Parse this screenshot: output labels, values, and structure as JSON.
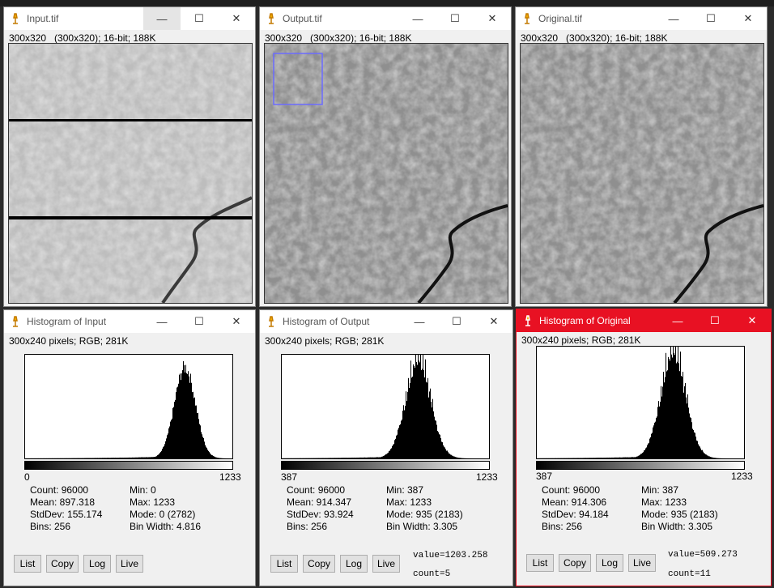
{
  "windows": {
    "input": {
      "title": "Input.tif",
      "info": "300x320   (300x320); 16-bit; 188K"
    },
    "output": {
      "title": "Output.tif",
      "info": "300x320   (300x320); 16-bit; 188K"
    },
    "original": {
      "title": "Original.tif",
      "info": "300x320   (300x320); 16-bit; 188K"
    }
  },
  "histograms": {
    "input": {
      "title": "Histogram of Input",
      "info": "300x240 pixels; RGB; 281K",
      "min_label": "0",
      "max_label": "1233",
      "count": "Count: 96000",
      "mean": "Mean: 897.318",
      "stddev": "StdDev: 155.174",
      "bins": "Bins: 256",
      "min": "Min: 0",
      "max": "Max: 1233",
      "mode": "Mode: 0 (2782)",
      "bin_width": "Bin Width: 4.816",
      "value": "",
      "count_readout": ""
    },
    "output": {
      "title": "Histogram of Output",
      "info": "300x240 pixels; RGB; 281K",
      "min_label": "387",
      "max_label": "1233",
      "count": "Count: 96000",
      "mean": "Mean: 914.347",
      "stddev": "StdDev: 93.924",
      "bins": "Bins: 256",
      "min": "Min: 387",
      "max": "Max: 1233",
      "mode": "Mode: 935 (2183)",
      "bin_width": "Bin Width: 3.305",
      "value": "value=1203.258",
      "count_readout": "count=5"
    },
    "original": {
      "title": "Histogram of Original",
      "info": "300x240 pixels; RGB; 281K",
      "min_label": "387",
      "max_label": "1233",
      "count": "Count: 96000",
      "mean": "Mean: 914.306",
      "stddev": "StdDev: 94.184",
      "bins": "Bins: 256",
      "min": "Min: 387",
      "max": "Max: 1233",
      "mode": "Mode: 935 (2183)",
      "bin_width": "Bin Width: 3.305",
      "value": "value=509.273",
      "count_readout": "count=11"
    }
  },
  "buttons": {
    "list": "List",
    "copy": "Copy",
    "log": "Log",
    "live": "Live"
  },
  "window_controls": {
    "minimize": "—",
    "maximize": "☐",
    "close": "✕"
  },
  "colors": {
    "active_title": "#e81123",
    "roi": "#6b6bff"
  }
}
